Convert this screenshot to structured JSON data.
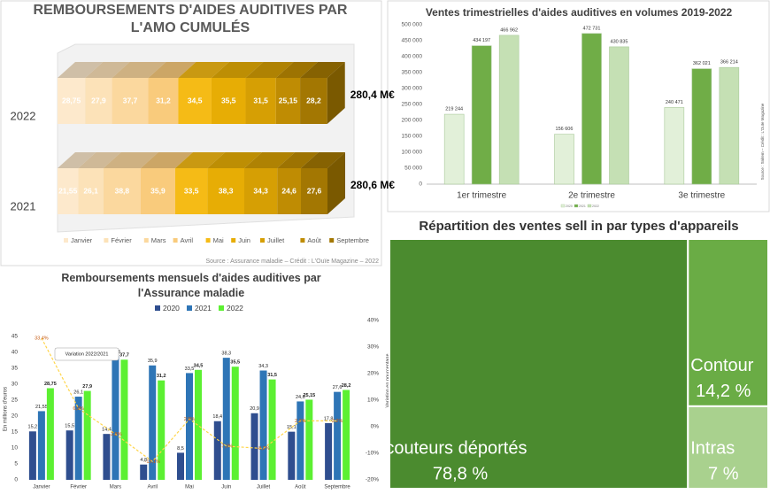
{
  "chart_data": [
    {
      "type": "stacked_bar_h",
      "title": "REMBOURSEMENTS D'AIDES AUDITIVES PAR L'AMO CUMULÉS",
      "categories": [
        "2022",
        "2021"
      ],
      "series": [
        {
          "name": "Janvier",
          "color": "#fde9cc",
          "values": [
            28.75,
            21.55
          ],
          "value_labels": [
            "28,75",
            "21,55"
          ]
        },
        {
          "name": "Février",
          "color": "#fce2b8",
          "values": [
            27.9,
            26.1
          ],
          "value_labels": [
            "27,9",
            "26,1"
          ]
        },
        {
          "name": "Mars",
          "color": "#fbd89e",
          "values": [
            37.7,
            38.8
          ],
          "value_labels": [
            "37,7",
            "38,8"
          ]
        },
        {
          "name": "Avril",
          "color": "#f9cb7c",
          "values": [
            31.2,
            35.9
          ],
          "value_labels": [
            "31,2",
            "35,9"
          ]
        },
        {
          "name": "Mai",
          "color": "#f5bb16",
          "values": [
            34.5,
            33.5
          ],
          "value_labels": [
            "34,5",
            "33,5"
          ]
        },
        {
          "name": "Juin",
          "color": "#e7ad05",
          "values": [
            35.5,
            38.3
          ],
          "value_labels": [
            "35,5",
            "38,3"
          ]
        },
        {
          "name": "Juillet",
          "color": "#d69f04",
          "values": [
            31.5,
            34.3
          ],
          "value_labels": [
            "31,5",
            "34,3"
          ]
        },
        {
          "name": "Août",
          "color": "#bf8c03",
          "values": [
            25.15,
            24.6
          ],
          "value_labels": [
            "25,15",
            "24,6"
          ]
        },
        {
          "name": "Septembre",
          "color": "#a37702",
          "values": [
            28.2,
            27.6
          ],
          "value_labels": [
            "28,2",
            "27,6"
          ]
        }
      ],
      "totals": {
        "values": [
          280.4,
          280.6
        ],
        "value_labels": [
          "280,4 M€",
          "280,6 M€"
        ]
      },
      "source": "Source : Assurance maladie – Crédit : L'Ouïe Magazine – 2022"
    },
    {
      "type": "bar",
      "title": "Ventes trimestrielles d'aides auditives en volumes 2019-2022",
      "categories": [
        "1er trimestre",
        "2e trimestre",
        "3e trimestre"
      ],
      "series": [
        {
          "name": "2020",
          "color": "#e2f0d9",
          "values": [
            219244,
            156606,
            240471
          ],
          "value_labels": [
            "219 244",
            "156 606",
            "240 471"
          ]
        },
        {
          "name": "2021",
          "color": "#70ad47",
          "values": [
            434197,
            472731,
            362021
          ],
          "value_labels": [
            "434 197",
            "472 731",
            "362 021"
          ]
        },
        {
          "name": "2022",
          "color": "#c5e0b4",
          "values": [
            466962,
            430835,
            366214
          ],
          "value_labels": [
            "466 962",
            "430 835",
            "366 214"
          ]
        }
      ],
      "ylim": [
        0,
        500000
      ],
      "yticks": [
        0,
        {
          "value": 50000,
          "label": "50 000"
        },
        {
          "value": 100000,
          "label": "100 000"
        },
        {
          "value": 150000,
          "label": "150 000"
        },
        {
          "value": 200000,
          "label": "200 000"
        },
        {
          "value": 250000,
          "label": "250 000"
        },
        {
          "value": 300000,
          "label": "300 000"
        },
        {
          "value": 350000,
          "label": "350 000"
        },
        {
          "value": 400000,
          "label": "400 000"
        },
        {
          "value": 450000,
          "label": "450 000"
        },
        {
          "value": 500000,
          "label": "500 000"
        }
      ],
      "source": "Source : Snitem – Crédit : L'Ouïe Magazine"
    },
    {
      "type": "bar_line",
      "title": "Remboursements mensuels d'aides auditives par l'Assurance maladie",
      "categories": [
        "Janvier",
        "Février",
        "Mars",
        "Avril",
        "Mai",
        "Juin",
        "Juillet",
        "Août",
        "Septembre"
      ],
      "series": [
        {
          "name": "2020",
          "color": "#2f4e8f",
          "values": [
            15.2,
            15.5,
            14.4,
            4.8,
            8.5,
            18.4,
            20.9,
            15.1,
            17.8
          ],
          "value_labels": [
            "15,2",
            "15,5",
            "14,4",
            "4,8",
            "8,5",
            "18,4",
            "20,9",
            "15,1",
            "17,8"
          ]
        },
        {
          "name": "2021",
          "color": "#2e75b6",
          "values": [
            21.55,
            26.1,
            38.8,
            35.9,
            33.5,
            38.3,
            34.3,
            24.6,
            27.6
          ],
          "value_labels": [
            "21,55",
            "26,1",
            "38,8",
            "35,9",
            "33,5",
            "38,3",
            "34,3",
            "24,6",
            "27,6"
          ]
        },
        {
          "name": "2022",
          "color": "#5cf032",
          "values": [
            28.75,
            27.9,
            37.7,
            31.2,
            34.5,
            35.5,
            31.5,
            25.15,
            28.2
          ],
          "value_labels": [
            "28,75",
            "27,9",
            "37,7",
            "31,2",
            "34,5",
            "35,5",
            "31,5",
            "25,15",
            "28,2"
          ]
        },
        {
          "axis": "y2",
          "color": "#ffd54a",
          "values": [
            33.4,
            6.9,
            -2.8,
            -13.1,
            2.9,
            -7.3,
            -8.2,
            2.2,
            2.2
          ],
          "value_labels": [
            "33,4%",
            "6,9%",
            "-2,8%",
            "-13,1%",
            "2,9%",
            "-7,3%",
            "-8,2%",
            "2,2%",
            "2,2%"
          ]
        }
      ],
      "ylim": [
        0,
        45
      ],
      "yticks": [
        0,
        5,
        10,
        15,
        20,
        25,
        30,
        35,
        40,
        45
      ],
      "y2lim": [
        -20,
        40
      ],
      "y2ticks": [
        {
          "value": -20,
          "label": "-20%"
        },
        {
          "value": -10,
          "label": "-10%"
        },
        {
          "value": 0,
          "label": "0%"
        },
        {
          "value": 10,
          "label": "10%"
        },
        {
          "value": 20,
          "label": "20%"
        },
        {
          "value": 30,
          "label": "30%"
        },
        {
          "value": 40,
          "label": "40%"
        }
      ],
      "ylabel": "En millions d'euros",
      "y2label": "Variation en pourcentage",
      "annotation": "Variation 2022/2021"
    },
    {
      "type": "treemap",
      "title": "Répartition des ventes sell in par types d'appareils",
      "labels": [
        "Écouteurs déportés",
        "Contour",
        "Intras"
      ],
      "values": [
        78.8,
        14.2,
        7
      ],
      "value_labels": [
        "78,8 %",
        "14,2 %",
        "7 %"
      ],
      "colors": [
        "#4b8b2f",
        "#6aac45",
        "#a9d18e"
      ]
    }
  ]
}
